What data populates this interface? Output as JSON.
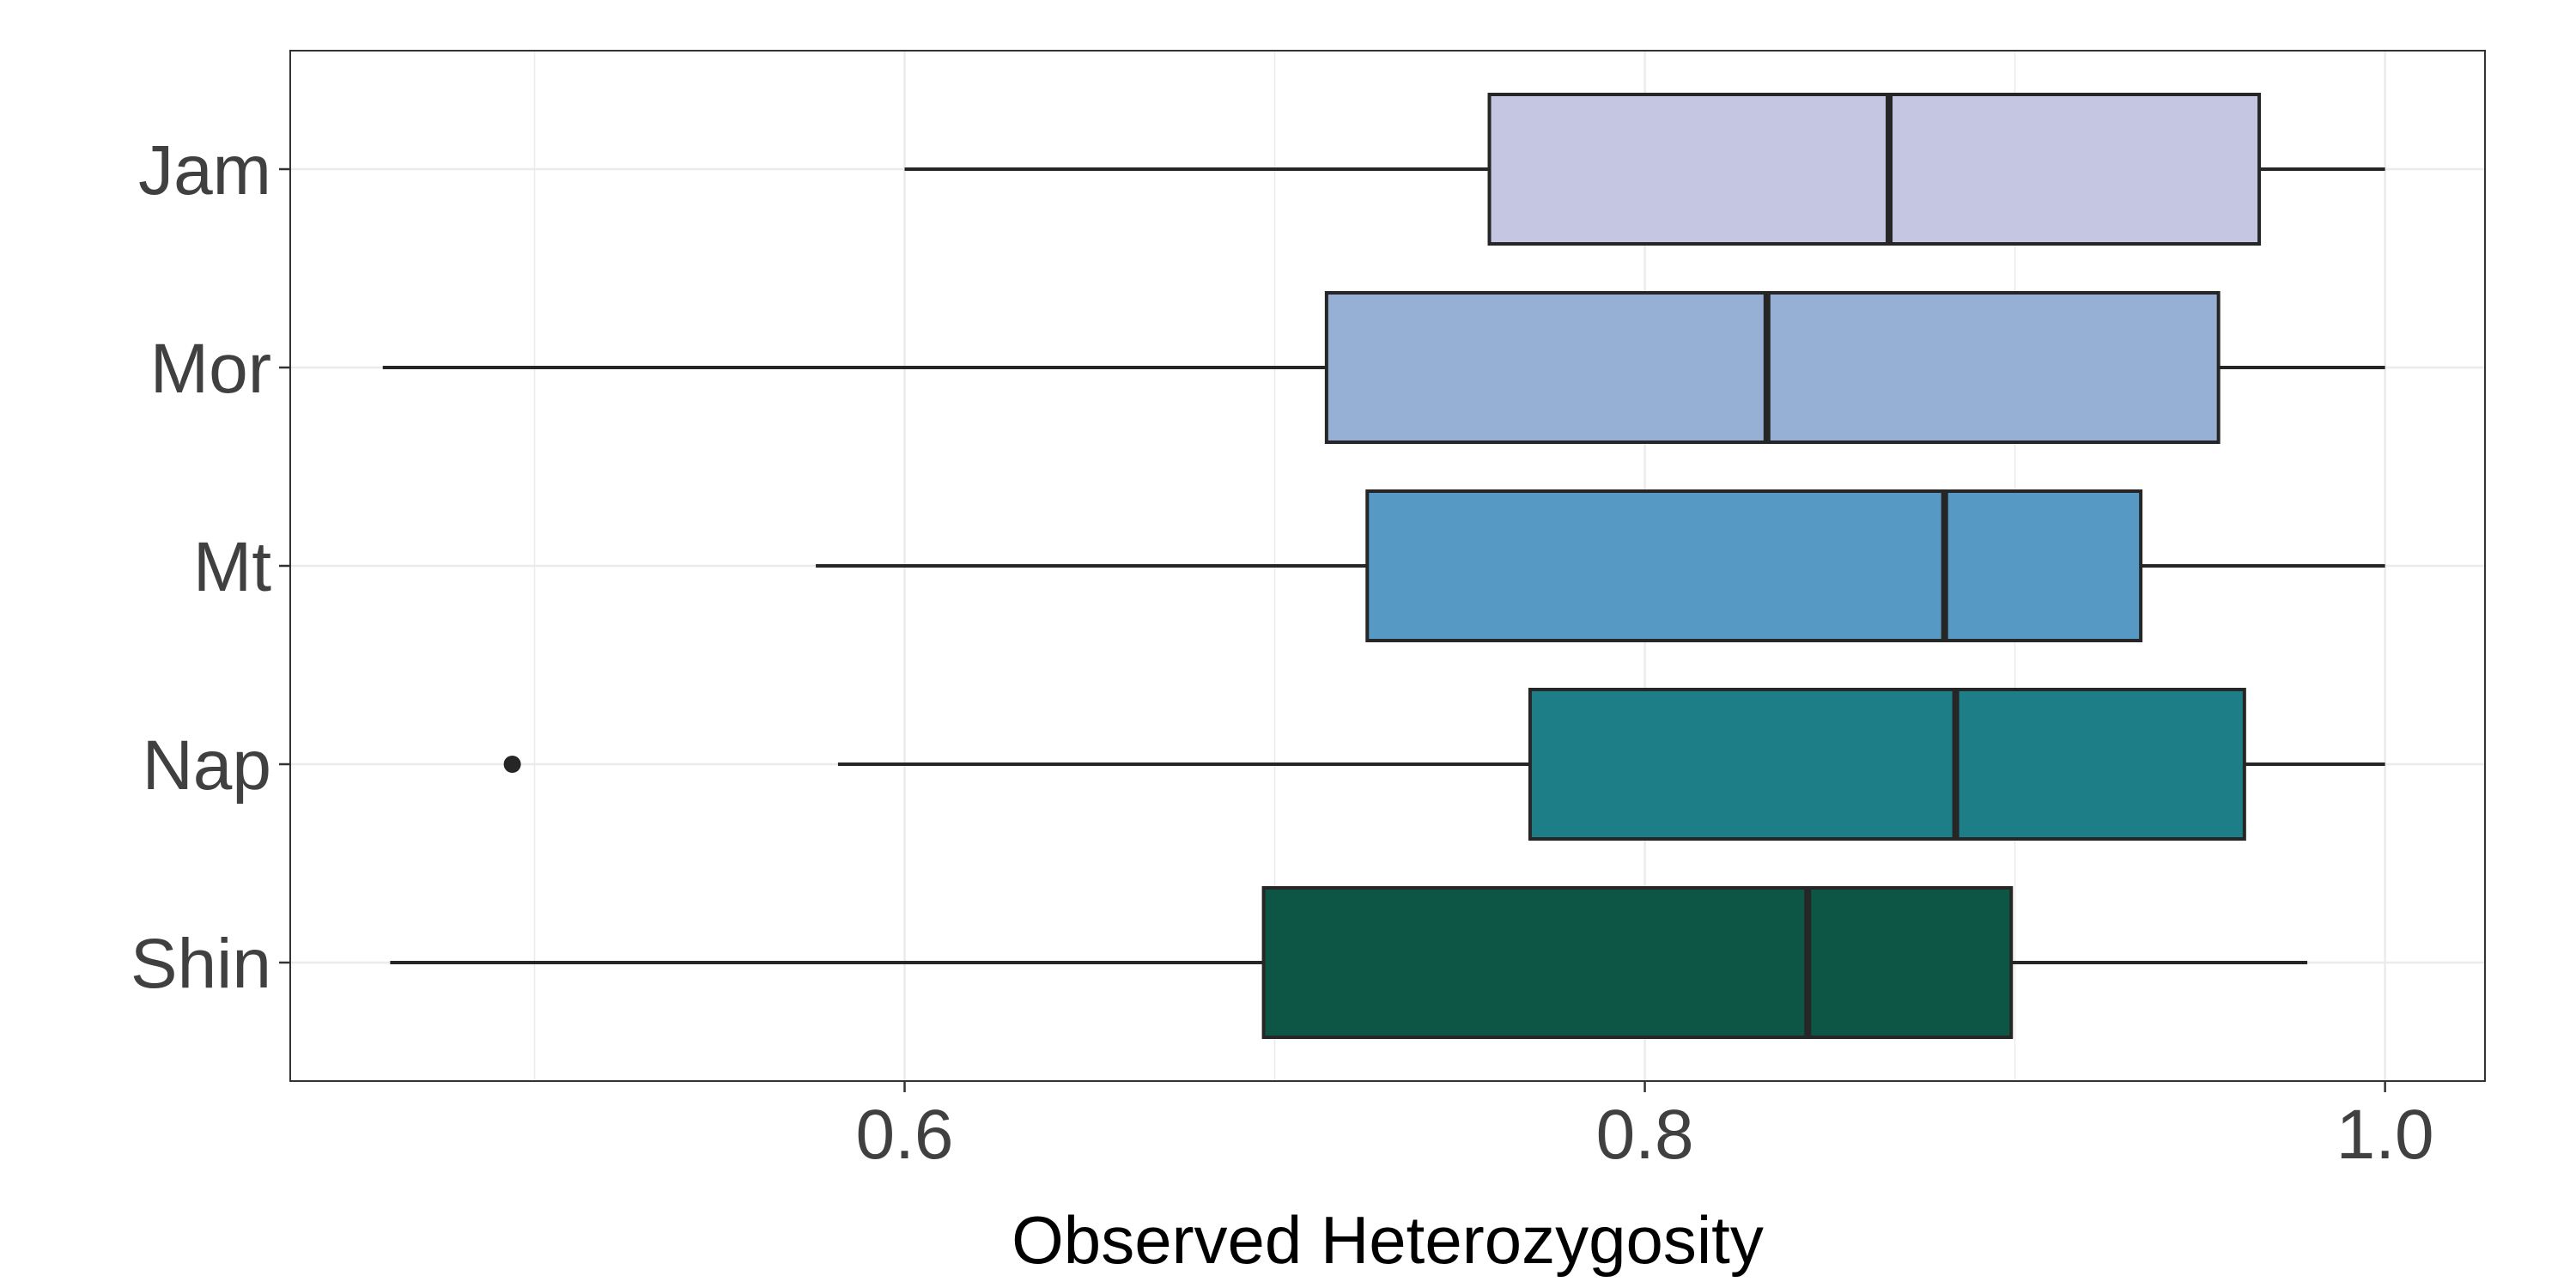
{
  "chart_data": {
    "type": "boxplot",
    "orientation": "horizontal",
    "title": "",
    "xlabel": "Observed Heterozygosity",
    "ylabel": "",
    "xlim": [
      0.434,
      1.027
    ],
    "xticks": [
      0.6,
      0.8,
      1.0
    ],
    "xtick_labels": [
      "0.6",
      "0.8",
      "1.0"
    ],
    "grid": true,
    "legend": "none",
    "categories": [
      "Jam",
      "Mor",
      "Mt",
      "Nap",
      "Shin"
    ],
    "series": [
      {
        "category": "Jam",
        "whisker_low": 0.6,
        "q1": 0.758,
        "median": 0.866,
        "q3": 0.966,
        "whisker_high": 1.0,
        "outliers": [],
        "color": "#c4c6e2"
      },
      {
        "category": "Mor",
        "whisker_low": 0.459,
        "q1": 0.714,
        "median": 0.833,
        "q3": 0.955,
        "whisker_high": 1.0,
        "outliers": [],
        "color": "#96afd5"
      },
      {
        "category": "Mt",
        "whisker_low": 0.576,
        "q1": 0.725,
        "median": 0.881,
        "q3": 0.934,
        "whisker_high": 1.0,
        "outliers": [],
        "color": "#5599c4"
      },
      {
        "category": "Nap",
        "whisker_low": 0.582,
        "q1": 0.769,
        "median": 0.884,
        "q3": 0.962,
        "whisker_high": 1.0,
        "outliers": [
          0.494
        ],
        "color": "#1e7e87"
      },
      {
        "category": "Shin",
        "whisker_low": 0.461,
        "q1": 0.697,
        "median": 0.844,
        "q3": 0.899,
        "whisker_high": 0.979,
        "outliers": [],
        "color": "#0d5645"
      }
    ]
  }
}
